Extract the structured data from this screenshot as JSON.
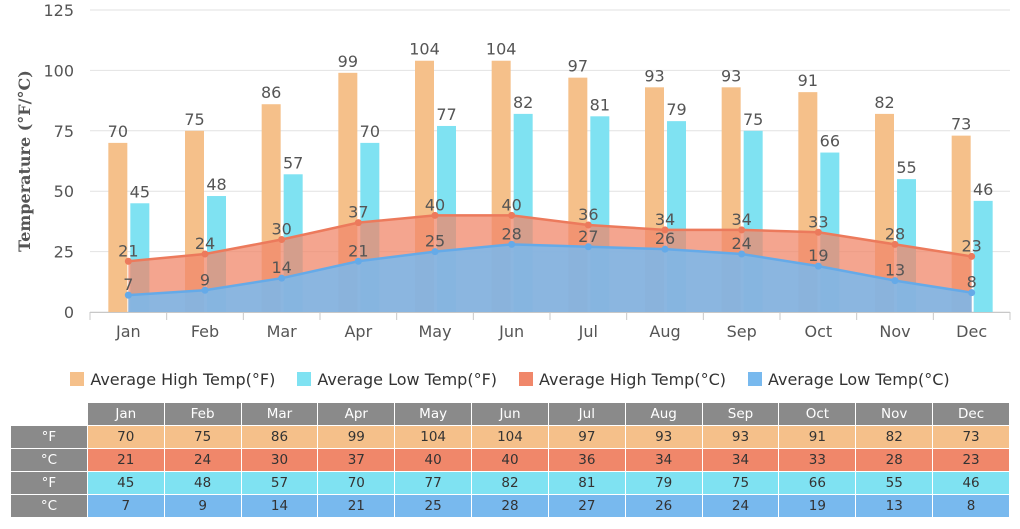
{
  "chart_data": {
    "type": "bar",
    "categories": [
      "Jan",
      "Feb",
      "Mar",
      "Apr",
      "May",
      "Jun",
      "Jul",
      "Aug",
      "Sep",
      "Oct",
      "Nov",
      "Dec"
    ],
    "ylabel": "Temperature (°F/°C)",
    "ylim": [
      0,
      125
    ],
    "yticks": [
      0,
      25,
      50,
      75,
      100,
      125
    ],
    "grid": true,
    "legend_position": "bottom",
    "series": [
      {
        "name": "Average High Temp(°F)",
        "kind": "bar",
        "color": "#f5c08a",
        "values": [
          70,
          75,
          86,
          99,
          104,
          104,
          97,
          93,
          93,
          91,
          82,
          73
        ]
      },
      {
        "name": "Average Low Temp(°F)",
        "kind": "bar",
        "color": "#7fe2f2",
        "values": [
          45,
          48,
          57,
          70,
          77,
          82,
          81,
          79,
          75,
          66,
          55,
          46
        ]
      },
      {
        "name": "Average High Temp(°C)",
        "kind": "area",
        "color": "#f0876a",
        "values": [
          21,
          24,
          30,
          37,
          40,
          40,
          36,
          34,
          34,
          33,
          28,
          23
        ]
      },
      {
        "name": "Average Low Temp(°C)",
        "kind": "area",
        "color": "#78b9ee",
        "values": [
          7,
          9,
          14,
          21,
          25,
          28,
          27,
          26,
          24,
          19,
          13,
          8
        ]
      }
    ]
  },
  "table": {
    "headers": [
      "Jan",
      "Feb",
      "Mar",
      "Apr",
      "May",
      "Jun",
      "Jul",
      "Aug",
      "Sep",
      "Oct",
      "Nov",
      "Dec"
    ],
    "rows": [
      {
        "unit": "°F",
        "color": "#f5c08a",
        "values": [
          70,
          75,
          86,
          99,
          104,
          104,
          97,
          93,
          93,
          91,
          82,
          73
        ]
      },
      {
        "unit": "°C",
        "color": "#f0876a",
        "values": [
          21,
          24,
          30,
          37,
          40,
          40,
          36,
          34,
          34,
          33,
          28,
          23
        ]
      },
      {
        "unit": "°F",
        "color": "#7fe2f2",
        "values": [
          45,
          48,
          57,
          70,
          77,
          82,
          81,
          79,
          75,
          66,
          55,
          46
        ]
      },
      {
        "unit": "°C",
        "color": "#78b9ee",
        "values": [
          7,
          9,
          14,
          21,
          25,
          28,
          27,
          26,
          24,
          19,
          13,
          8
        ]
      }
    ]
  }
}
